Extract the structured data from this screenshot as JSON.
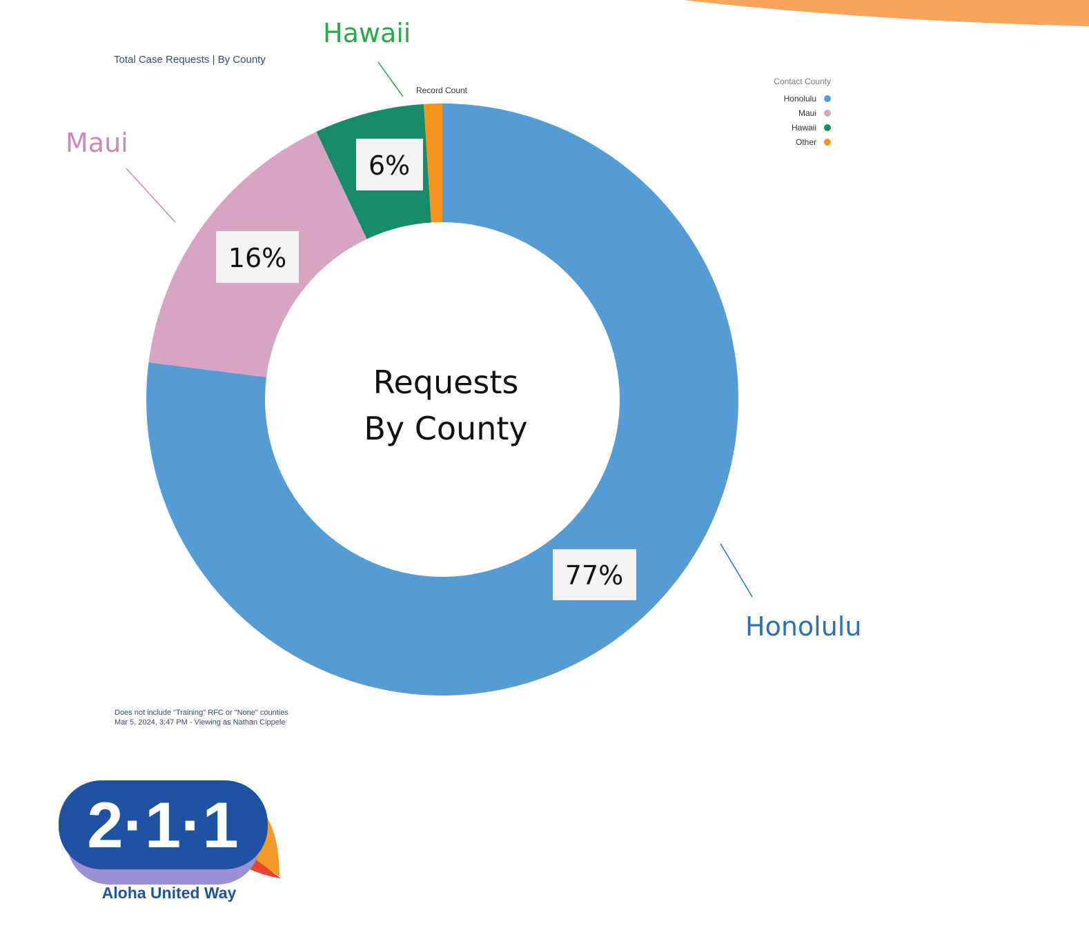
{
  "report": {
    "title": "Total Case Requests | By County",
    "footnote_line1": "Does not include \"Training\" RFC or \"None\" counties",
    "footnote_line2": "Mar 5, 2024, 3:47 PM - Viewing as Nathan Cippele"
  },
  "chart_data": {
    "type": "pie",
    "donut": true,
    "center_label": [
      "Requests",
      "By County"
    ],
    "value_label": "Record Count",
    "legend_title": "Contact County",
    "legend_position": "top-right",
    "slices": [
      {
        "name": "Honolulu",
        "value": 77,
        "label": "77%",
        "color": "#559bd5"
      },
      {
        "name": "Maui",
        "value": 16,
        "label": "16%",
        "color": "#d8a4c4"
      },
      {
        "name": "Hawaii",
        "value": 6,
        "label": "6%",
        "color": "#168c6b"
      },
      {
        "name": "Other",
        "value": 1,
        "label": "",
        "color": "#f3941d"
      }
    ],
    "callouts": [
      {
        "text": "Hawaii",
        "color": "#2ba84a"
      },
      {
        "text": "Maui",
        "color": "#c98ab8"
      },
      {
        "text": "Honolulu",
        "color": "#2f6fb8"
      }
    ]
  },
  "logo": {
    "number": "2·1·1",
    "org": "Aloha United Way",
    "colors": {
      "blue": "#1f52a3",
      "orange": "#f39a2b",
      "red": "#e8452c",
      "lavender": "#9b90d6"
    }
  },
  "decor": {
    "accent": "#f6a55a"
  }
}
